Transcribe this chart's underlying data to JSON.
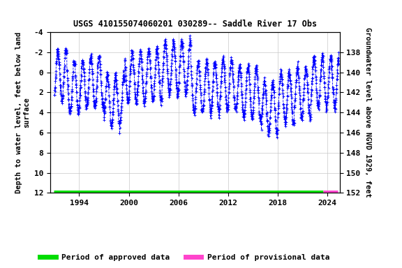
{
  "title": "USGS 410155074060201 030289-- Saddle River 17 Obs",
  "ylabel_left": "Depth to water level, feet below land\nsurface",
  "ylabel_right": "Groundwater level above NGVD 1929, feet",
  "ylim_left": [
    -4,
    12
  ],
  "ylim_right": [
    152,
    136
  ],
  "yticks_left": [
    -4,
    -2,
    0,
    2,
    4,
    6,
    8,
    10,
    12
  ],
  "yticks_right": [
    152,
    150,
    148,
    146,
    144,
    142,
    140,
    138
  ],
  "xlim": [
    1990.5,
    2025.5
  ],
  "xticks": [
    1994,
    2000,
    2006,
    2012,
    2018,
    2024
  ],
  "line_color": "#0000ff",
  "approved_color": "#00dd00",
  "provisional_color": "#ff44cc",
  "background_color": "#ffffff",
  "grid_color": "#c8c8c8",
  "title_fontsize": 8.5,
  "axis_label_fontsize": 7.5,
  "tick_fontsize": 8,
  "legend_fontsize": 8,
  "approved_start": 1990.9,
  "approved_end": 2023.5,
  "provisional_start": 2023.5,
  "provisional_end": 2025.3,
  "bar_y": 12.0
}
